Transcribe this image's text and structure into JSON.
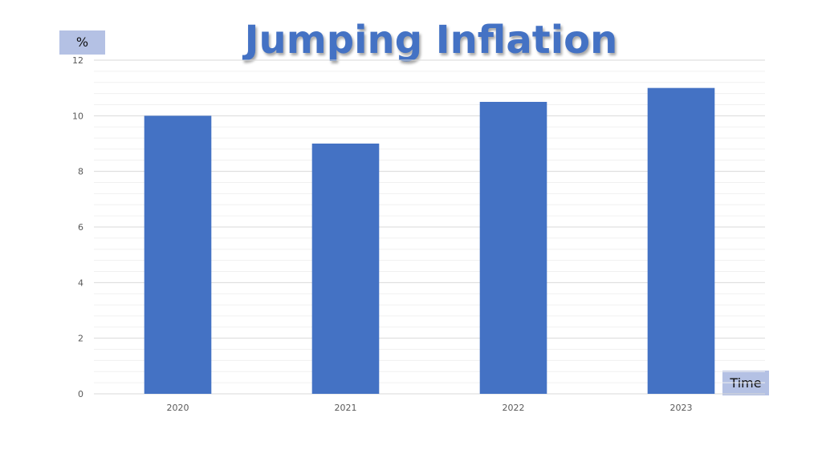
{
  "chart_data": {
    "type": "bar",
    "title": "Jumping Inflation",
    "ylabel": "%",
    "xlabel": "Time",
    "categories": [
      "2020",
      "2021",
      "2022",
      "2023"
    ],
    "values": [
      10,
      9,
      10.5,
      11
    ],
    "ylim": [
      0,
      12
    ],
    "yticks": [
      "0",
      "2",
      "4",
      "6",
      "8",
      "10",
      "12"
    ],
    "grid": true,
    "legend": "none"
  },
  "colors": {
    "bar": "#4472c4",
    "title": "#4472c4",
    "label_box": "#b4c1e4",
    "grid_major": "#d9d9d9",
    "grid_minor": "#f0f0f0"
  }
}
